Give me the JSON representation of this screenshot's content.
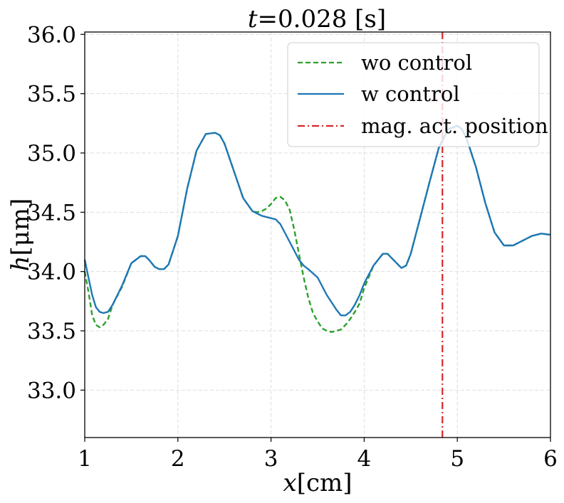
{
  "chart_data": {
    "type": "line",
    "title_italic": "t",
    "title_rest": "=0.028 [s]",
    "xlabel_italic": "x",
    "xlabel_rest": "[cm]",
    "ylabel_italic": "h",
    "ylabel_rest": "[μm]",
    "xlim": [
      1,
      6
    ],
    "ylim": [
      32.6,
      36.02
    ],
    "x_ticks": [
      1,
      2,
      3,
      4,
      5,
      6
    ],
    "x_tick_labels": [
      "1",
      "2",
      "3",
      "4",
      "5",
      "6"
    ],
    "y_ticks": [
      33.0,
      33.5,
      34.0,
      34.5,
      35.0,
      35.5,
      36.0
    ],
    "y_tick_labels": [
      "33.0",
      "33.5",
      "34.0",
      "34.5",
      "35.0",
      "35.5",
      "36.0"
    ],
    "grid": true,
    "legend_position": "top-right",
    "series": [
      {
        "name": "wo control",
        "style": "dashed",
        "color": "#2ca02c",
        "x": [
          1.0,
          1.04,
          1.08,
          1.12,
          1.16,
          1.2,
          1.25,
          1.3,
          1.4,
          1.5,
          1.6,
          1.65,
          1.7,
          1.75,
          1.8,
          1.85,
          1.9,
          2.0,
          2.1,
          2.2,
          2.3,
          2.4,
          2.45,
          2.5,
          2.6,
          2.7,
          2.8,
          2.85,
          2.9,
          2.95,
          3.0,
          3.05,
          3.1,
          3.15,
          3.2,
          3.25,
          3.3,
          3.35,
          3.4,
          3.45,
          3.5,
          3.55,
          3.6,
          3.65,
          3.7,
          3.75,
          3.8,
          3.85,
          3.9,
          3.95,
          4.0,
          4.1,
          4.2,
          4.25,
          4.3,
          4.4,
          4.45,
          4.5,
          4.6,
          4.7,
          4.8,
          4.9,
          5.0,
          5.05,
          5.1,
          5.2,
          5.3,
          5.4,
          5.5,
          5.6,
          5.7,
          5.8,
          5.9,
          6.0
        ],
        "y": [
          34.0,
          33.83,
          33.63,
          33.55,
          33.53,
          33.55,
          33.6,
          33.72,
          33.87,
          34.07,
          34.13,
          34.13,
          34.09,
          34.04,
          34.02,
          34.02,
          34.06,
          34.3,
          34.7,
          35.02,
          35.16,
          35.17,
          35.15,
          35.08,
          34.85,
          34.62,
          34.51,
          34.5,
          34.51,
          34.53,
          34.57,
          34.62,
          34.63,
          34.6,
          34.52,
          34.35,
          34.15,
          33.95,
          33.78,
          33.65,
          33.58,
          33.52,
          33.5,
          33.49,
          33.5,
          33.51,
          33.55,
          33.6,
          33.66,
          33.73,
          33.86,
          34.05,
          34.15,
          34.15,
          34.11,
          34.03,
          34.05,
          34.15,
          34.45,
          34.75,
          35.04,
          35.2,
          35.23,
          35.2,
          35.12,
          34.88,
          34.58,
          34.33,
          34.22,
          34.22,
          34.26,
          34.3,
          34.32,
          34.31
        ]
      },
      {
        "name": "w control",
        "style": "solid",
        "color": "#1f77b4",
        "x": [
          1.0,
          1.04,
          1.08,
          1.12,
          1.16,
          1.2,
          1.25,
          1.3,
          1.4,
          1.5,
          1.6,
          1.65,
          1.7,
          1.75,
          1.8,
          1.85,
          1.9,
          2.0,
          2.1,
          2.2,
          2.3,
          2.4,
          2.45,
          2.5,
          2.6,
          2.7,
          2.8,
          2.85,
          2.9,
          3.0,
          3.05,
          3.1,
          3.2,
          3.3,
          3.35,
          3.4,
          3.5,
          3.6,
          3.7,
          3.75,
          3.8,
          3.85,
          3.9,
          3.95,
          4.0,
          4.1,
          4.2,
          4.25,
          4.3,
          4.4,
          4.45,
          4.5,
          4.6,
          4.7,
          4.8,
          4.9,
          5.0,
          5.05,
          5.1,
          5.2,
          5.3,
          5.4,
          5.5,
          5.6,
          5.7,
          5.8,
          5.9,
          6.0
        ],
        "y": [
          34.1,
          33.95,
          33.8,
          33.7,
          33.66,
          33.65,
          33.66,
          33.72,
          33.88,
          34.07,
          34.13,
          34.13,
          34.09,
          34.04,
          34.02,
          34.02,
          34.06,
          34.3,
          34.7,
          35.02,
          35.16,
          35.17,
          35.15,
          35.08,
          34.85,
          34.62,
          34.51,
          34.49,
          34.47,
          34.45,
          34.44,
          34.4,
          34.25,
          34.1,
          34.05,
          34.02,
          33.95,
          33.8,
          33.68,
          33.63,
          33.63,
          33.66,
          33.72,
          33.8,
          33.9,
          34.05,
          34.15,
          34.15,
          34.11,
          34.03,
          34.05,
          34.15,
          34.45,
          34.75,
          35.04,
          35.2,
          35.23,
          35.2,
          35.12,
          34.88,
          34.58,
          34.33,
          34.22,
          34.22,
          34.26,
          34.3,
          34.32,
          34.31
        ]
      }
    ],
    "vline": {
      "name": "mag. act. position",
      "x": 4.84,
      "style": "dashdot",
      "color": "#d62728"
    }
  }
}
